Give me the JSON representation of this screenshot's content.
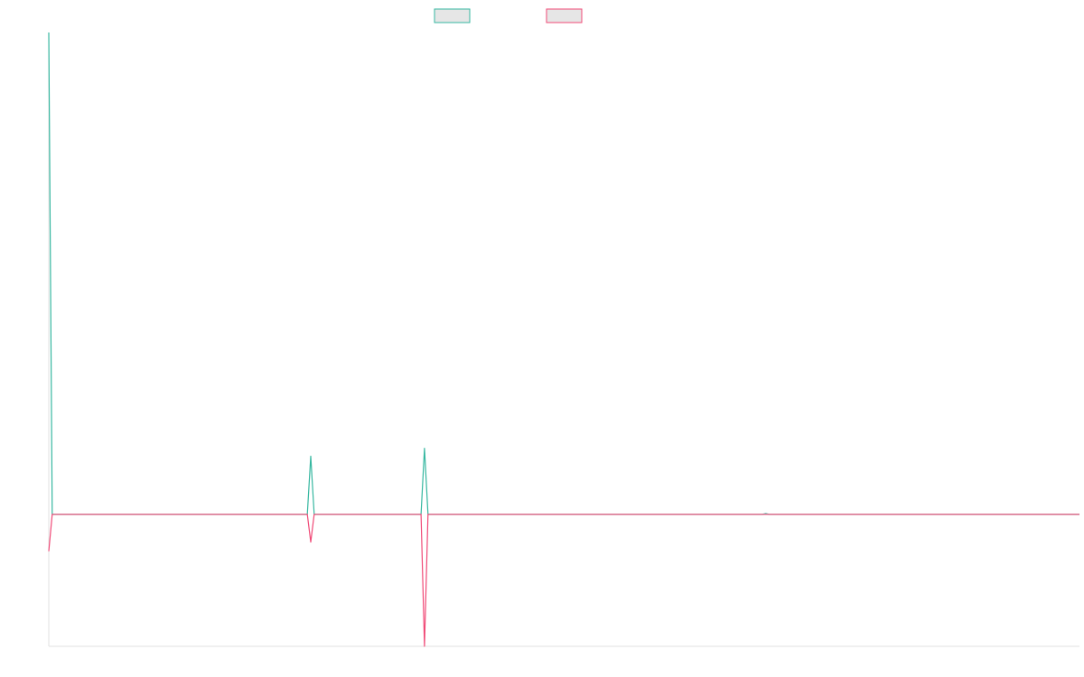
{
  "chart_data": {
    "type": "line",
    "title": "",
    "xlabel": "",
    "ylabel": "",
    "x_count": 300,
    "ylim": [
      -100,
      365
    ],
    "grid": false,
    "legend_position": "top-center",
    "series": [
      {
        "color": "#36b7a0",
        "fill": "#e6e6e6",
        "points": [
          [
            0,
            365
          ],
          [
            1,
            0
          ],
          [
            75,
            0
          ],
          [
            76,
            44
          ],
          [
            77,
            0
          ],
          [
            108,
            0
          ],
          [
            109,
            50
          ],
          [
            110,
            0
          ],
          [
            207,
            0
          ],
          [
            208,
            0.5
          ],
          [
            209,
            0
          ],
          [
            299,
            0
          ]
        ]
      },
      {
        "color": "#f04a77",
        "fill": "#e6e6e6",
        "points": [
          [
            0,
            -28
          ],
          [
            1,
            0
          ],
          [
            75,
            0
          ],
          [
            76,
            -21
          ],
          [
            77,
            0
          ],
          [
            108,
            0
          ],
          [
            109,
            -100
          ],
          [
            110,
            0
          ],
          [
            299,
            0
          ]
        ]
      }
    ]
  }
}
